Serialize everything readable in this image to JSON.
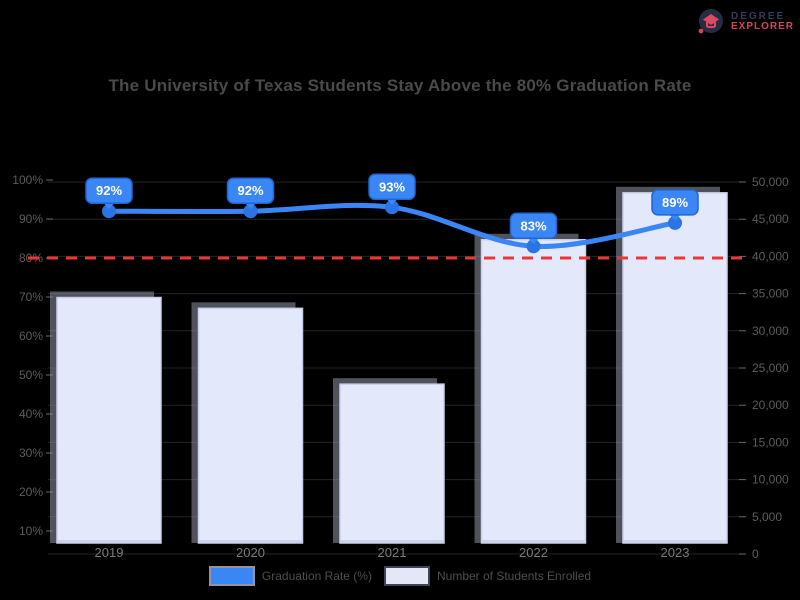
{
  "page": {
    "background": "#000000"
  },
  "logo": {
    "line1": "DEGREE",
    "line2": "EXPLORER",
    "icon_color": "#262c45",
    "accent_color": "#d8435c"
  },
  "title": {
    "text": "The University of Texas Students Stay Above the 80% Graduation Rate"
  },
  "chart_data": {
    "type": "bar",
    "subtype": "combo-bar-line-dual-axis",
    "title": "The University of Texas Students Stay Above the 80% Graduation Rate",
    "categories": [
      "2019",
      "2020",
      "2021",
      "2022",
      "2023"
    ],
    "series": [
      {
        "name": "Graduation Rate (%)",
        "type": "line",
        "axis": "left",
        "values": [
          92,
          92,
          93,
          83,
          89
        ],
        "point_labels": [
          "92%",
          "92%",
          "93%",
          "83%",
          "89%"
        ],
        "color": "#3a86f4",
        "marker_color": "#2b74e3"
      },
      {
        "name": "Number of Students Enrolled",
        "type": "bar",
        "axis": "right",
        "values": [
          34000,
          32500,
          22000,
          42000,
          48500
        ],
        "color": "#e3e9fa",
        "border_color": "#c8d0ec"
      }
    ],
    "threshold": {
      "value": 80,
      "color": "#ee3535",
      "style": "dashed"
    },
    "left_axis": {
      "ticks": [
        "100%",
        "90%",
        "80%",
        "70%",
        "60%",
        "50%",
        "40%",
        "30%",
        "20%",
        "10%"
      ],
      "range": [
        10,
        100
      ]
    },
    "right_axis": {
      "ticks": [
        "50,000",
        "45,000",
        "40,000",
        "35,000",
        "30,000",
        "25,000",
        "20,000",
        "15,000",
        "10,000",
        "5,000",
        "0"
      ],
      "range": [
        0,
        50000
      ]
    },
    "grid": "horizontal",
    "legend_position": "bottom",
    "legend": [
      {
        "label": "Graduation Rate (%)",
        "color": "#3a86f4"
      },
      {
        "label": "Number of Students Enrolled",
        "color": "#e3e7f8"
      }
    ]
  }
}
